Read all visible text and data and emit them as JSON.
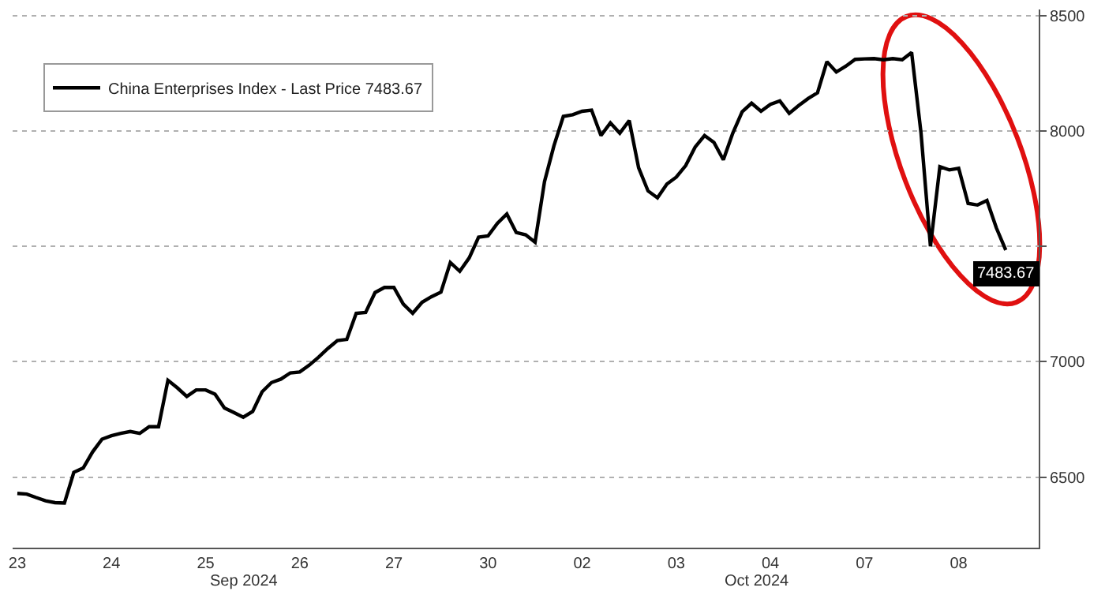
{
  "chart_data": {
    "type": "line",
    "categories": [
      "23",
      null,
      null,
      null,
      null,
      null,
      null,
      null,
      null,
      null,
      "24",
      null,
      null,
      null,
      null,
      null,
      null,
      null,
      null,
      null,
      "25",
      null,
      null,
      null,
      null,
      null,
      null,
      null,
      null,
      null,
      "26",
      null,
      null,
      null,
      null,
      null,
      null,
      null,
      null,
      null,
      "27",
      null,
      null,
      null,
      null,
      null,
      null,
      null,
      null,
      null,
      "30",
      null,
      null,
      null,
      null,
      null,
      null,
      null,
      null,
      null,
      "02",
      null,
      null,
      null,
      null,
      null,
      null,
      null,
      null,
      null,
      "03",
      null,
      null,
      null,
      null,
      null,
      null,
      null,
      null,
      null,
      "04",
      null,
      null,
      null,
      null,
      null,
      null,
      null,
      null,
      null,
      "07",
      null,
      null,
      null,
      null,
      null,
      null,
      null,
      null,
      null,
      "08",
      null,
      null,
      null,
      null,
      null,
      null,
      null,
      null
    ],
    "series": [
      {
        "name": "China Enterprises Index - Last Price 7483.67",
        "color": "#000000",
        "values": [
          6430,
          6427,
          6412,
          6398,
          6390,
          6388,
          6521,
          6540,
          6610,
          6665,
          6680,
          6690,
          6698,
          6690,
          6719,
          6719,
          6920,
          6887,
          6850,
          6878,
          6878,
          6860,
          6800,
          6780,
          6760,
          6785,
          6870,
          6910,
          6925,
          6952,
          6956,
          6985,
          7020,
          7058,
          7092,
          7097,
          7210,
          7214,
          7300,
          7322,
          7322,
          7250,
          7210,
          7258,
          7282,
          7302,
          7430,
          7392,
          7450,
          7540,
          7545,
          7600,
          7640,
          7560,
          7550,
          7518,
          7780,
          7935,
          8063,
          8070,
          8085,
          8090,
          7980,
          8035,
          7990,
          8045,
          7840,
          7740,
          7710,
          7770,
          7800,
          7850,
          7930,
          7980,
          7950,
          7875,
          7990,
          8083,
          8120,
          8085,
          8115,
          8130,
          8076,
          8110,
          8140,
          8165,
          8300,
          8255,
          8280,
          8310,
          8312,
          8313,
          8308,
          8313,
          8308,
          8340,
          7990,
          7500,
          7845,
          7831,
          7838,
          7686,
          7679,
          7699,
          7580,
          7483.67,
          null,
          null,
          null
        ],
        "value_labels": [
          null,
          null,
          null,
          null,
          null,
          null,
          null,
          null,
          null,
          null,
          null,
          null,
          null,
          null,
          null,
          null,
          null,
          null,
          null,
          null,
          null,
          null,
          null,
          null,
          null,
          null,
          null,
          null,
          null,
          null,
          null,
          null,
          null,
          null,
          null,
          null,
          null,
          null,
          null,
          null,
          null,
          null,
          null,
          null,
          null,
          null,
          null,
          null,
          null,
          null,
          null,
          null,
          null,
          null,
          null,
          null,
          null,
          null,
          null,
          null,
          null,
          null,
          null,
          null,
          null,
          null,
          null,
          null,
          null,
          null,
          null,
          null,
          null,
          null,
          null,
          null,
          null,
          null,
          null,
          null,
          null,
          null,
          null,
          null,
          null,
          null,
          null,
          null,
          null,
          null,
          null,
          null,
          null,
          null,
          null,
          null,
          null,
          null,
          null,
          null,
          null,
          null,
          null,
          null,
          null,
          "7483.67",
          null,
          null,
          null
        ]
      }
    ],
    "ylim": [
      6195,
      8526
    ],
    "yticks": [
      6500,
      7000,
      {
        "value": 7500,
        "label": null
      },
      8000,
      8500
    ],
    "annotations": [
      "Sep 2024",
      "Oct 2024"
    ],
    "grid": "y",
    "legend": "top left",
    "line_style": "solid",
    "marker": "none"
  }
}
